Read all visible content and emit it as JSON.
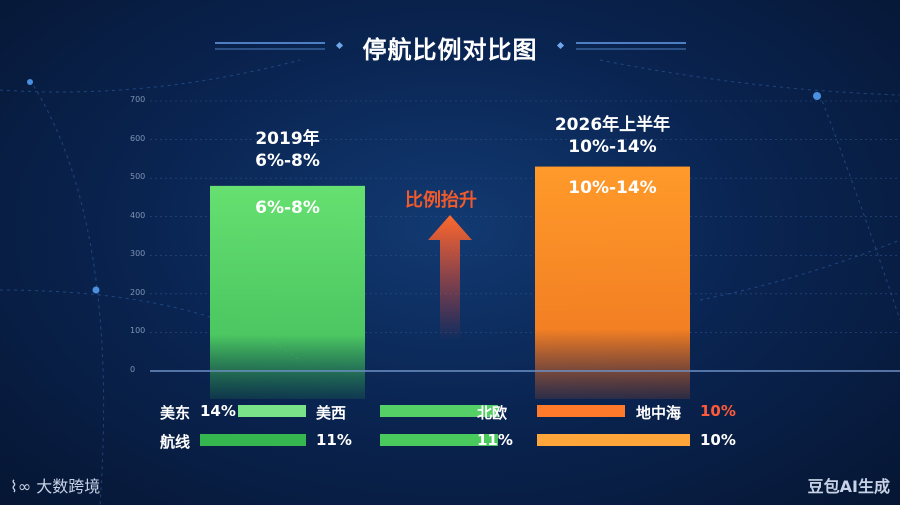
{
  "chart_data": {
    "type": "bar",
    "title": "停航比例对比图",
    "ylim": [
      0,
      700
    ],
    "yticks": [
      0,
      100,
      200,
      300,
      400,
      500,
      600,
      700
    ],
    "categories": [
      "2019年",
      "2026年上半年"
    ],
    "values": [
      480,
      530
    ],
    "range_labels": [
      "6%-8%",
      "10%-14%"
    ],
    "colors": [
      "#5fd86a",
      "#ff8c25"
    ],
    "annotation": "比例抬升"
  },
  "legend": {
    "rows": [
      {
        "label_left": "美东",
        "value_left": "14%",
        "label_mid": "美西",
        "label_right": "北欧",
        "label_far": "地中海",
        "value_far": "10%"
      },
      {
        "label_left": "航线",
        "value_mid": "11%",
        "value_right": "11%",
        "value_far": "10%"
      }
    ]
  },
  "watermarks": {
    "left": "大数跨境",
    "right": "豆包AI生成"
  }
}
